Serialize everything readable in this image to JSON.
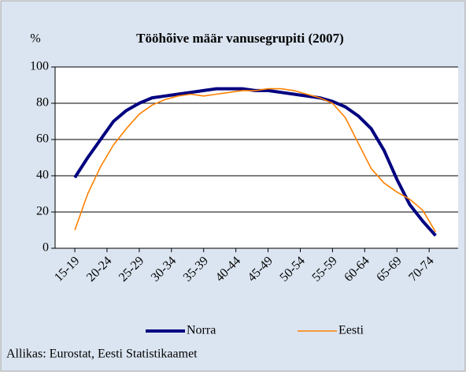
{
  "chart_data": {
    "type": "line",
    "title": "Tööhõive määr vanusegrupiti (2007)",
    "y_label": "%",
    "source": "Allikas: Eurostat, Eesti Statistikaamet",
    "x": [
      15,
      17,
      19,
      21,
      23,
      25,
      27,
      29,
      31,
      33,
      35,
      37,
      39,
      41,
      43,
      45,
      47,
      49,
      51,
      53,
      55,
      57,
      59,
      61,
      63,
      65,
      67,
      69,
      71
    ],
    "series": [
      {
        "name": "Norra",
        "color": "#000080",
        "values": [
          39,
          50,
          60,
          70,
          76,
          80,
          83,
          84,
          85,
          86,
          87,
          88,
          88,
          88,
          87,
          87,
          86,
          85,
          84,
          83,
          81,
          78,
          73,
          66,
          54,
          38,
          24,
          15,
          7
        ]
      },
      {
        "name": "Eesti",
        "color": "#ff8000",
        "values": [
          10,
          30,
          45,
          57,
          66,
          74,
          79,
          82,
          84,
          85,
          84,
          85,
          86,
          87,
          87,
          88,
          88,
          87,
          85,
          83,
          80,
          72,
          58,
          44,
          36,
          31,
          27,
          21,
          9
        ]
      }
    ],
    "xlim": [
      11.94,
      74.5
    ],
    "xticks": [
      {
        "value": 15,
        "label": "15-19"
      },
      {
        "value": 20,
        "label": "20-24"
      },
      {
        "value": 25,
        "label": "25-29"
      },
      {
        "value": 30,
        "label": "30-34"
      },
      {
        "value": 35,
        "label": "35-39"
      },
      {
        "value": 40,
        "label": "40-44"
      },
      {
        "value": 45,
        "label": "45-49"
      },
      {
        "value": 50,
        "label": "50-54"
      },
      {
        "value": 55,
        "label": "55-59"
      },
      {
        "value": 60,
        "label": "60-64"
      },
      {
        "value": 65,
        "label": "65-69"
      },
      {
        "value": 70,
        "label": "70-74"
      }
    ],
    "ylim": [
      0,
      100
    ],
    "yticks": [
      0,
      20,
      40,
      60,
      80,
      100
    ],
    "grid": true,
    "legend": "bottom"
  }
}
